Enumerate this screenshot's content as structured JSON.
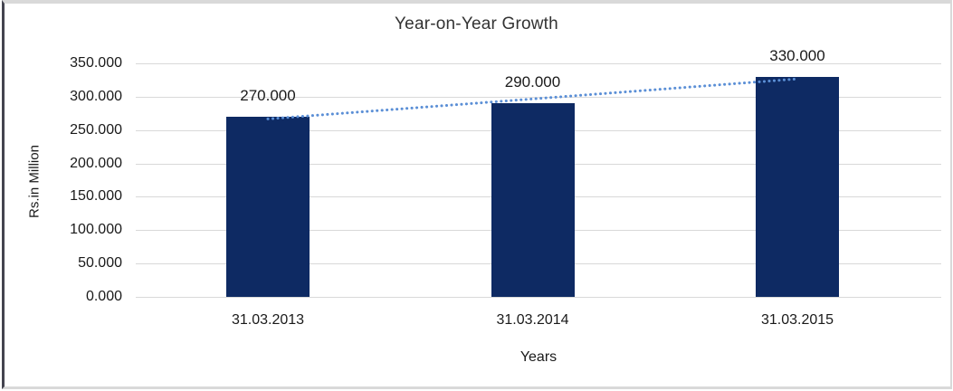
{
  "chart_data": {
    "type": "bar",
    "title": "Year-on-Year Growth",
    "xlabel": "Years",
    "ylabel": "Rs.in Million",
    "categories": [
      "31.03.2013",
      "31.03.2014",
      "31.03.2015"
    ],
    "values": [
      270,
      290,
      330
    ],
    "value_labels": [
      "270.000",
      "290.000",
      "330.000"
    ],
    "ylim": [
      0,
      350
    ],
    "ytick_step": 50,
    "ytick_labels": [
      "0.000",
      "50.000",
      "100.000",
      "150.000",
      "200.000",
      "250.000",
      "300.000",
      "350.000"
    ],
    "grid": true,
    "legend": "none",
    "trendline": {
      "type": "linear",
      "style": "dotted",
      "values_at_categories": [
        266.67,
        296.67,
        326.67
      ]
    },
    "colors": {
      "bar": "#0e2a63",
      "trendline": "#5b8fd6",
      "gridline": "#d9d9d9",
      "title_text": "#333333",
      "axis_text": "#1a1a1a",
      "frame_border": "#d9d9d9",
      "frame_left_edge": "#44444f"
    }
  }
}
